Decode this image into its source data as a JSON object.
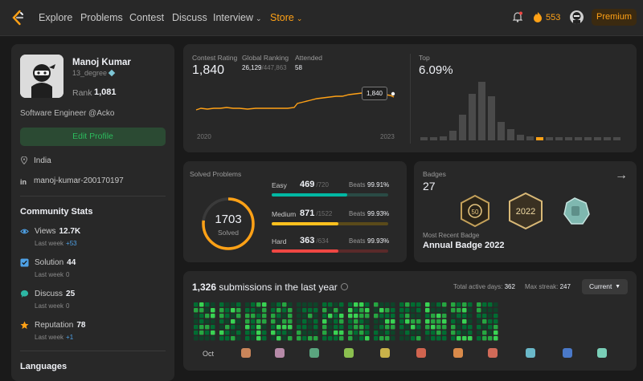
{
  "nav": {
    "items": [
      "Explore",
      "Problems",
      "Contest",
      "Discuss",
      "Interview",
      "Store"
    ],
    "streak_count": "553",
    "premium_label": "Premium"
  },
  "profile": {
    "name": "Manoj Kumar",
    "handle": "13_degree",
    "rank_label": "Rank",
    "rank_value": "1,081",
    "bio": "Software Engineer @Acko",
    "edit_label": "Edit Profile",
    "location": "India",
    "linkedin": "manoj-kumar-200170197"
  },
  "community": {
    "title": "Community Stats",
    "stats": [
      {
        "label": "Views",
        "value": "12.7K",
        "sub_label": "Last week",
        "sub_value": "+53",
        "icon": "eye-icon",
        "color": "#4ea1e6"
      },
      {
        "label": "Solution",
        "value": "44",
        "sub_label": "Last week",
        "sub_value": "0",
        "icon": "solution-icon",
        "color": "#4ea1e6"
      },
      {
        "label": "Discuss",
        "value": "25",
        "sub_label": "Last week",
        "sub_value": "0",
        "icon": "discuss-icon",
        "color": "#2db6a3"
      },
      {
        "label": "Reputation",
        "value": "78",
        "sub_label": "Last week",
        "sub_value": "+1",
        "icon": "star-icon",
        "color": "#ffa116"
      }
    ],
    "languages_title": "Languages"
  },
  "contest": {
    "rating_label": "Contest Rating",
    "rating_value": "1,840",
    "global_label": "Global Ranking",
    "global_rank": "26,129",
    "global_total": "/447,863",
    "attended_label": "Attended",
    "attended_value": "58",
    "top_label": "Top",
    "top_value": "6.09%",
    "tooltip": "1,840",
    "year_start": "2020",
    "year_end": "2023"
  },
  "solved": {
    "title": "Solved Problems",
    "total": "1703",
    "total_label": "Solved",
    "beats_label": "Beats",
    "difficulties": [
      {
        "label": "Easy",
        "solved": "469",
        "total": "/720",
        "beats": "99.91%",
        "color": "#00b8a3",
        "track": "#2a4b45",
        "fraction": 0.651
      },
      {
        "label": "Medium",
        "solved": "871",
        "total": "/1522",
        "beats": "99.93%",
        "color": "#ffc01e",
        "track": "#5a4a1a",
        "fraction": 0.572
      },
      {
        "label": "Hard",
        "solved": "363",
        "total": "/634",
        "beats": "99.93%",
        "color": "#ef4743",
        "track": "#5a2a2a",
        "fraction": 0.573
      }
    ]
  },
  "badges": {
    "title": "Badges",
    "count": "27",
    "recent_label": "Most Recent Badge",
    "recent_name": "Annual Badge 2022"
  },
  "submissions": {
    "count": "1,326",
    "title_rest": "submissions in the last year",
    "active_label": "Total active days:",
    "active_value": "362",
    "streak_label": "Max streak:",
    "streak_value": "247",
    "range_label": "Current",
    "first_month": "Oct"
  },
  "colors": {
    "accent": "#ffa116",
    "easy": "#00b8a3",
    "medium": "#ffc01e",
    "hard": "#ef4743",
    "heat_low": "#0e4429",
    "heat_mid": "#006d32",
    "heat_high": "#26a641",
    "heat_max": "#39d353"
  }
}
